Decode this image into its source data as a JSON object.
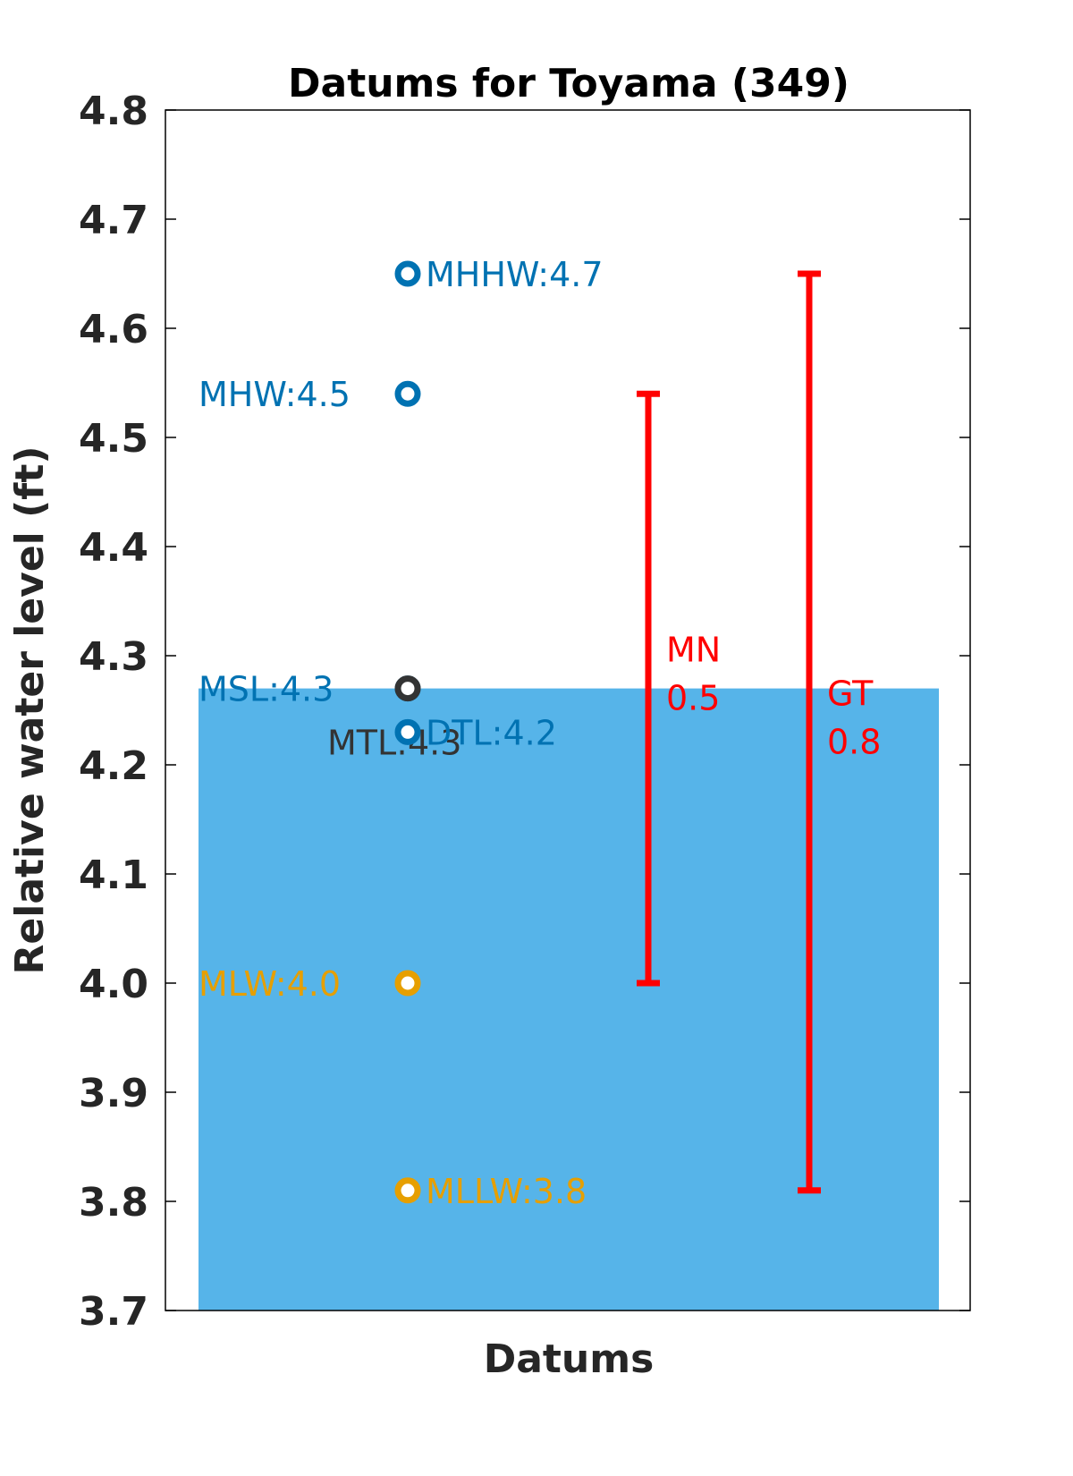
{
  "chart_data": {
    "type": "scatter",
    "title": "Datums for Toyama (349)",
    "xlabel": "Datums",
    "ylabel": "Relative water level (ft)",
    "ylim": [
      3.7,
      4.8
    ],
    "yticks": [
      "3.7",
      "3.8",
      "3.9",
      "4.0",
      "4.1",
      "4.2",
      "4.3",
      "4.4",
      "4.5",
      "4.6",
      "4.7",
      "4.8"
    ],
    "grid": false,
    "background_bar": {
      "value": 4.27,
      "color": "#56B4E9"
    },
    "points": [
      {
        "name": "MHHW",
        "label": "MHHW:4.7",
        "value": 4.65,
        "color": "#0072B2",
        "label_side": "right"
      },
      {
        "name": "MHW",
        "label": "MHW:4.5",
        "value": 4.54,
        "color": "#0072B2",
        "label_side": "left"
      },
      {
        "name": "MSL",
        "label": "MSL:4.3",
        "value": 4.27,
        "color": "#0072B2",
        "label_side": "left"
      },
      {
        "name": "MTL",
        "label": "MTL:4.3",
        "value": 4.27,
        "color": "#333333",
        "label_side": "left-below"
      },
      {
        "name": "DTL",
        "label": "DTL:4.2",
        "value": 4.23,
        "color": "#0072B2",
        "label_side": "right"
      },
      {
        "name": "MLW",
        "label": "MLW:4.0",
        "value": 4.0,
        "color": "#E69F00",
        "label_side": "left"
      },
      {
        "name": "MLLW",
        "label": "MLLW:3.8",
        "value": 3.81,
        "color": "#E69F00",
        "label_side": "right"
      }
    ],
    "ranges": [
      {
        "name": "MN",
        "label": "MN",
        "value_label": "0.5",
        "low": 4.0,
        "high": 4.54,
        "color": "#ff0000"
      },
      {
        "name": "GT",
        "label": "GT",
        "value_label": "0.8",
        "low": 3.81,
        "high": 4.65,
        "color": "#ff0000"
      }
    ]
  }
}
